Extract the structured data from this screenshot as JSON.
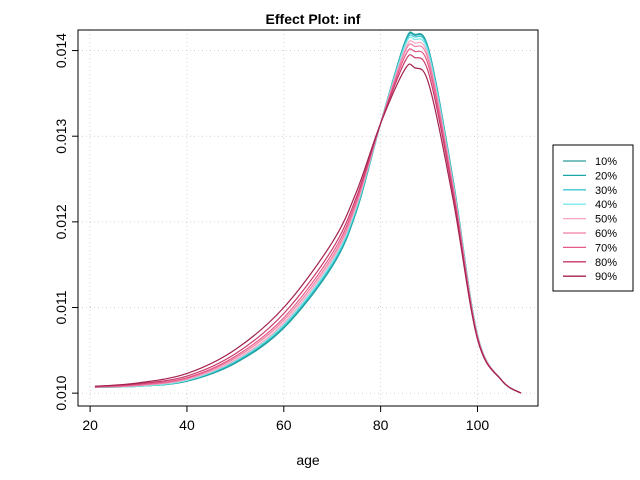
{
  "chart_data": {
    "type": "line",
    "title": "Effect Plot: inf",
    "xlabel": "age",
    "ylabel": "",
    "xlim": [
      17.5,
      112.5
    ],
    "ylim": [
      0.00985,
      0.01424
    ],
    "x_ticks": [
      20,
      40,
      60,
      80,
      100
    ],
    "y_ticks": [
      0.01,
      0.011,
      0.012,
      0.013,
      0.014
    ],
    "x_tick_labels": [
      "20",
      "40",
      "60",
      "80",
      "100"
    ],
    "y_tick_labels": [
      "0.010",
      "0.011",
      "0.012",
      "0.013",
      "0.014"
    ],
    "grid": true,
    "legend_position": "right",
    "x": [
      21,
      30,
      40,
      50,
      60,
      70,
      75,
      80,
      85,
      87,
      90,
      95,
      100,
      105,
      109
    ],
    "series": [
      {
        "name": "10%",
        "color": "#2a9d9d",
        "values": [
          0.01007,
          0.01008,
          0.01014,
          0.01035,
          0.01076,
          0.01148,
          0.01212,
          0.01315,
          0.0141,
          0.01419,
          0.014,
          0.01248,
          0.01068,
          0.01015,
          0.01
        ]
      },
      {
        "name": "20%",
        "color": "#1aa7a7",
        "values": [
          0.01007,
          0.01008,
          0.01014,
          0.01036,
          0.01077,
          0.01149,
          0.01213,
          0.01315,
          0.01409,
          0.01418,
          0.01399,
          0.01248,
          0.01068,
          0.01015,
          0.01
        ]
      },
      {
        "name": "30%",
        "color": "#3ec7d6",
        "values": [
          0.01007,
          0.01008,
          0.01015,
          0.01037,
          0.01079,
          0.01151,
          0.01215,
          0.01315,
          0.01407,
          0.01416,
          0.01397,
          0.01246,
          0.01068,
          0.01015,
          0.01
        ]
      },
      {
        "name": "40%",
        "color": "#7ee8e8",
        "values": [
          0.01007,
          0.01008,
          0.01015,
          0.01038,
          0.0108,
          0.01153,
          0.01217,
          0.01315,
          0.01405,
          0.01413,
          0.01394,
          0.01244,
          0.01067,
          0.01015,
          0.01
        ]
      },
      {
        "name": "50%",
        "color": "#f4a6c0",
        "values": [
          0.01007,
          0.01009,
          0.01016,
          0.01039,
          0.01082,
          0.01156,
          0.01219,
          0.01315,
          0.01401,
          0.01409,
          0.0139,
          0.01242,
          0.01067,
          0.01015,
          0.01
        ]
      },
      {
        "name": "60%",
        "color": "#ef7ea4",
        "values": [
          0.01007,
          0.01009,
          0.01017,
          0.01041,
          0.01085,
          0.01159,
          0.01222,
          0.01315,
          0.01398,
          0.01405,
          0.01386,
          0.01239,
          0.01066,
          0.01015,
          0.01
        ]
      },
      {
        "name": "70%",
        "color": "#e65a88",
        "values": [
          0.01007,
          0.0101,
          0.01018,
          0.01043,
          0.01088,
          0.01163,
          0.01225,
          0.01315,
          0.01393,
          0.01399,
          0.0138,
          0.01236,
          0.01065,
          0.01015,
          0.01
        ]
      },
      {
        "name": "80%",
        "color": "#c83a6c",
        "values": [
          0.01008,
          0.01011,
          0.0102,
          0.01046,
          0.01093,
          0.01168,
          0.01229,
          0.01315,
          0.01387,
          0.01392,
          0.01372,
          0.01232,
          0.01064,
          0.01015,
          0.01
        ]
      },
      {
        "name": "90%",
        "color": "#a3224f",
        "values": [
          0.01008,
          0.01012,
          0.01023,
          0.01051,
          0.011,
          0.01176,
          0.01235,
          0.01315,
          0.01378,
          0.0138,
          0.0136,
          0.01225,
          0.01063,
          0.01015,
          0.01
        ]
      }
    ]
  }
}
